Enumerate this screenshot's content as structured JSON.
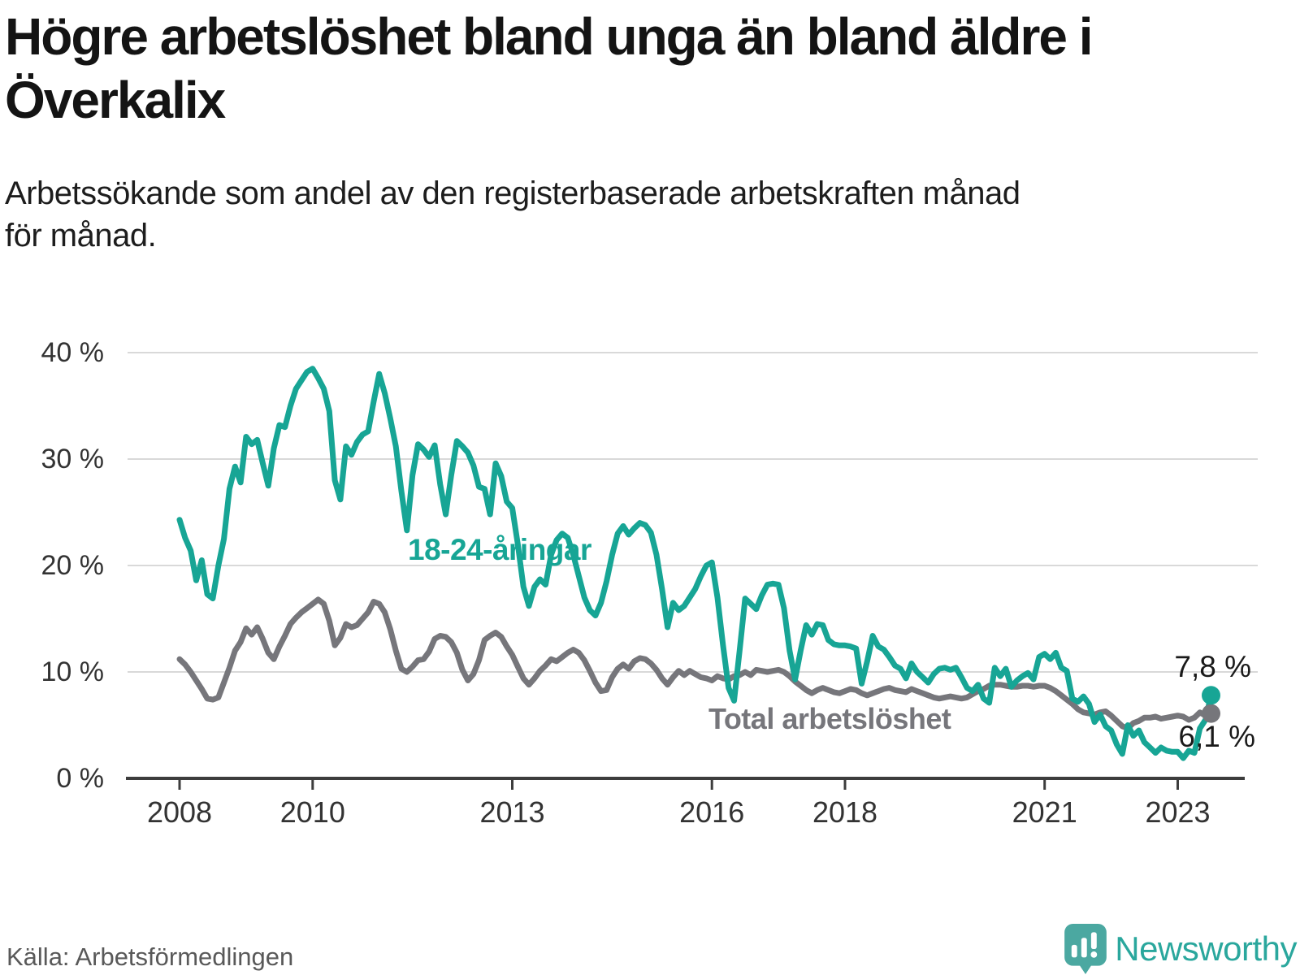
{
  "title_lines": [
    "Högre arbetslöshet bland unga än bland äldre i",
    "Överkalix"
  ],
  "subtitle_lines": [
    "Arbetssökande som andel av den registerbaserade arbetskraften månad",
    "för månad."
  ],
  "source": "Källa: Arbetsförmedlingen",
  "branding": {
    "name": "Newsworthy",
    "icon": "newsworthy-pin-barchart-icon",
    "icon_color": "#4BA8A1",
    "wordmark_color": "#2AA79D"
  },
  "chart_data": {
    "type": "line",
    "title": "Högre arbetslöshet bland unga än bland äldre i Överkalix",
    "xlabel": "",
    "ylabel": "",
    "x_start_year": 2008,
    "x_end": "2023-07",
    "points_per_year": 12,
    "x_ticks": [
      2008,
      2010,
      2013,
      2016,
      2018,
      2021,
      2023
    ],
    "y_ticks": [
      0,
      10,
      20,
      30,
      40
    ],
    "y_tick_suffix": " %",
    "ylim": [
      0,
      40
    ],
    "grid": true,
    "grid_color": "#d9d9d9",
    "axis_color": "#3d3d3d",
    "series": [
      {
        "name": "18-24-åringar",
        "color": "#17A595",
        "end_label": "7,8 %",
        "end_value": 7.8,
        "values": [
          24.3,
          22.6,
          21.4,
          18.6,
          20.5,
          17.3,
          16.9,
          20.0,
          22.5,
          27.2,
          29.3,
          27.8,
          32.1,
          31.4,
          31.8,
          29.6,
          27.5,
          31.0,
          33.2,
          33.0,
          35.0,
          36.6,
          37.4,
          38.2,
          38.5,
          37.6,
          36.6,
          34.5,
          28.0,
          26.2,
          31.2,
          30.4,
          31.6,
          32.3,
          32.6,
          35.4,
          38.0,
          36.2,
          33.8,
          31.2,
          27.0,
          23.3,
          28.5,
          31.4,
          30.9,
          30.2,
          31.3,
          27.6,
          24.8,
          28.5,
          31.7,
          31.2,
          30.6,
          29.4,
          27.4,
          27.2,
          24.8,
          29.6,
          28.4,
          26.0,
          25.4,
          22.0,
          18.0,
          16.2,
          18.0,
          18.7,
          18.2,
          21.0,
          22.4,
          23.0,
          22.6,
          21.0,
          19.0,
          17.0,
          15.8,
          15.3,
          16.5,
          18.5,
          21.0,
          23.0,
          23.7,
          22.9,
          23.5,
          24.0,
          23.8,
          23.1,
          21.0,
          17.8,
          14.2,
          16.5,
          15.8,
          16.2,
          17.0,
          17.8,
          19.0,
          20.0,
          20.3,
          17.0,
          12.5,
          8.5,
          7.3,
          12.0,
          16.9,
          16.4,
          15.9,
          17.2,
          18.2,
          18.3,
          18.2,
          16.0,
          12.0,
          9.3,
          12.0,
          14.4,
          13.5,
          14.5,
          14.4,
          13.0,
          12.6,
          12.5,
          12.5,
          12.4,
          12.2,
          8.9,
          11.0,
          13.4,
          12.4,
          12.1,
          11.4,
          10.6,
          10.3,
          9.4,
          10.8,
          10.0,
          9.5,
          9.0,
          9.8,
          10.3,
          10.4,
          10.2,
          10.4,
          9.5,
          8.5,
          8.2,
          8.8,
          7.5,
          7.1,
          10.4,
          9.6,
          10.3,
          8.6,
          9.2,
          9.6,
          9.9,
          9.3,
          11.4,
          11.7,
          11.2,
          11.8,
          10.4,
          10.1,
          7.5,
          7.2,
          7.7,
          7.0,
          5.3,
          6.0,
          4.9,
          4.5,
          3.2,
          2.3,
          5.0,
          4.0,
          4.5,
          3.4,
          2.9,
          2.4,
          2.9,
          2.6,
          2.5,
          2.5,
          1.9,
          2.6,
          2.4,
          4.7,
          5.5,
          7.8
        ]
      },
      {
        "name": "Total arbetslöshet",
        "color": "#76767B",
        "end_label": "6,1 %",
        "end_value": 6.1,
        "values": [
          11.2,
          10.7,
          10.0,
          9.2,
          8.4,
          7.5,
          7.4,
          7.6,
          9.0,
          10.4,
          12.0,
          12.8,
          14.1,
          13.5,
          14.2,
          13.1,
          11.8,
          11.2,
          12.4,
          13.4,
          14.5,
          15.1,
          15.6,
          16.0,
          16.4,
          16.8,
          16.4,
          14.8,
          12.5,
          13.2,
          14.5,
          14.2,
          14.4,
          15.0,
          15.6,
          16.6,
          16.4,
          15.6,
          14.0,
          12.0,
          10.3,
          10.0,
          10.5,
          11.1,
          11.2,
          11.9,
          13.1,
          13.4,
          13.3,
          12.8,
          11.8,
          10.2,
          9.2,
          9.8,
          11.1,
          13.0,
          13.4,
          13.7,
          13.3,
          12.4,
          11.6,
          10.5,
          9.4,
          8.8,
          9.4,
          10.1,
          10.6,
          11.2,
          11.0,
          11.4,
          11.8,
          12.1,
          11.8,
          11.1,
          10.1,
          9.0,
          8.2,
          8.3,
          9.5,
          10.3,
          10.7,
          10.3,
          11.0,
          11.3,
          11.2,
          10.8,
          10.2,
          9.4,
          8.8,
          9.5,
          10.1,
          9.7,
          10.1,
          9.8,
          9.5,
          9.4,
          9.2,
          9.6,
          9.4,
          9.3,
          9.6,
          9.7,
          10.0,
          9.7,
          10.2,
          10.1,
          10.0,
          10.1,
          10.2,
          10.0,
          9.6,
          9.1,
          8.7,
          8.3,
          8.0,
          8.3,
          8.5,
          8.3,
          8.1,
          8.0,
          8.2,
          8.4,
          8.3,
          8.0,
          7.8,
          8.0,
          8.2,
          8.4,
          8.5,
          8.3,
          8.2,
          8.1,
          8.4,
          8.2,
          8.0,
          7.8,
          7.6,
          7.5,
          7.6,
          7.7,
          7.6,
          7.5,
          7.6,
          7.9,
          8.2,
          8.4,
          8.7,
          8.8,
          8.8,
          8.7,
          8.6,
          8.6,
          8.7,
          8.7,
          8.6,
          8.7,
          8.7,
          8.5,
          8.2,
          7.8,
          7.4,
          7.0,
          6.5,
          6.2,
          6.1,
          6.0,
          6.2,
          6.3,
          5.9,
          5.4,
          4.9,
          4.7,
          5.2,
          5.4,
          5.7,
          5.7,
          5.8,
          5.6,
          5.7,
          5.8,
          5.9,
          5.8,
          5.5,
          5.7,
          6.2,
          5.9,
          6.1
        ]
      }
    ],
    "legend_position": "inline-labels"
  }
}
